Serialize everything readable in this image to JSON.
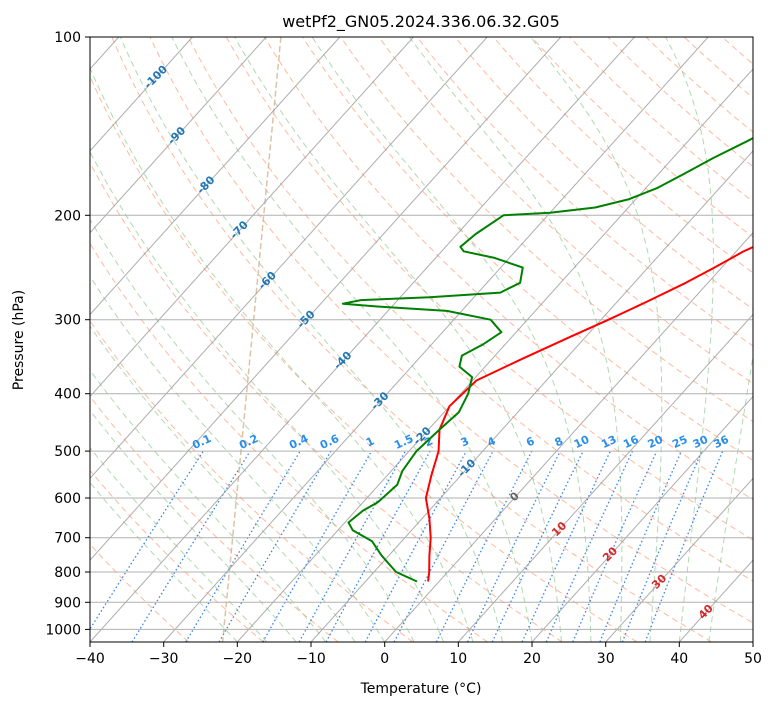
{
  "chart_data": {
    "type": "line",
    "title": "wetPf2_GN05.2024.336.06.32.G05",
    "xlabel": "Temperature (°C)",
    "ylabel": "Pressure (hPa)",
    "xlim": [
      -40,
      50
    ],
    "ylim": [
      1050,
      100
    ],
    "y_scale": "log",
    "grid": true,
    "x_ticks": [
      "−40",
      "−30",
      "−20",
      "−10",
      "0",
      "10",
      "20",
      "30",
      "40",
      "50"
    ],
    "x_tick_values": [
      -40,
      -30,
      -20,
      -10,
      0,
      10,
      20,
      30,
      40,
      50
    ],
    "y_ticks": [
      "100",
      "200",
      "300",
      "400",
      "500",
      "600",
      "700",
      "800",
      "900",
      "1000"
    ],
    "y_tick_values": [
      100,
      200,
      300,
      400,
      500,
      600,
      700,
      800,
      900,
      1000
    ],
    "colors": {
      "temperature": "#ff0000",
      "dewpoint": "#008000",
      "dry_adiabat": "#ff7f50",
      "moist_adiabat": "#90c890",
      "mixing_ratio": "#1f77e8",
      "isotherm": "#999999",
      "lcl_curve": "#d2b48c",
      "isotherm_label": "#1f77b4",
      "adiabat_label": "#d62728",
      "mixing_label": "#2a8fe8"
    },
    "series": [
      {
        "key": "temperature",
        "points": [
          [
            -1.5,
            830
          ],
          [
            -2.5,
            800
          ],
          [
            -4.5,
            750
          ],
          [
            -6.5,
            700
          ],
          [
            -9,
            650
          ],
          [
            -12,
            600
          ],
          [
            -14,
            550
          ],
          [
            -16,
            500
          ],
          [
            -18.5,
            460
          ],
          [
            -20,
            420
          ],
          [
            -19.5,
            380
          ],
          [
            -16,
            350
          ],
          [
            -12,
            320
          ],
          [
            -9,
            300
          ],
          [
            -6,
            280
          ],
          [
            -3,
            260
          ],
          [
            -1,
            245
          ],
          [
            1,
            230
          ],
          [
            3,
            220
          ],
          [
            5.5,
            205
          ],
          [
            7,
            195
          ],
          [
            8.5,
            180
          ],
          [
            10,
            165
          ],
          [
            11.5,
            150
          ],
          [
            13,
            140
          ],
          [
            15,
            130
          ],
          [
            16.5,
            122
          ],
          [
            17,
            115
          ],
          [
            18,
            108
          ],
          [
            20,
            100
          ]
        ]
      },
      {
        "key": "dewpoint",
        "points": [
          [
            -3,
            830
          ],
          [
            -7,
            800
          ],
          [
            -11,
            750
          ],
          [
            -14,
            710
          ],
          [
            -18,
            680
          ],
          [
            -19.5,
            660
          ],
          [
            -19,
            630
          ],
          [
            -18,
            610
          ],
          [
            -17.5,
            570
          ],
          [
            -18.5,
            540
          ],
          [
            -19,
            500
          ],
          [
            -18.5,
            460
          ],
          [
            -18,
            430
          ],
          [
            -19,
            400
          ],
          [
            -20.5,
            375
          ],
          [
            -23.5,
            360
          ],
          [
            -24.5,
            345
          ],
          [
            -23,
            330
          ],
          [
            -22,
            315
          ],
          [
            -25,
            300
          ],
          [
            -32,
            290
          ],
          [
            -42,
            285
          ],
          [
            -47,
            282
          ],
          [
            -45,
            278
          ],
          [
            -36,
            275
          ],
          [
            -27,
            270
          ],
          [
            -25.5,
            260
          ],
          [
            -27,
            245
          ],
          [
            -32,
            236
          ],
          [
            -37,
            230
          ],
          [
            -38,
            226
          ],
          [
            -37.5,
            215
          ],
          [
            -36,
            200
          ],
          [
            -30,
            198
          ],
          [
            -24.5,
            194
          ],
          [
            -21,
            188
          ],
          [
            -18.5,
            180
          ],
          [
            -16.5,
            170
          ],
          [
            -14.5,
            160
          ],
          [
            -12,
            150
          ],
          [
            -10,
            142
          ],
          [
            -7,
            133
          ],
          [
            -5,
            125
          ],
          [
            -3.5,
            118
          ],
          [
            -2,
            110
          ],
          [
            -0.5,
            100
          ]
        ]
      }
    ],
    "isotherm_labels": [
      {
        "text": "-100",
        "t": -100,
        "p": 117
      },
      {
        "text": "-90",
        "t": -90,
        "p": 147
      },
      {
        "text": "-80",
        "t": -80,
        "p": 178
      },
      {
        "text": "-70",
        "t": -70,
        "p": 212
      },
      {
        "text": "-60",
        "t": -60,
        "p": 258
      },
      {
        "text": "-50",
        "t": -50,
        "p": 300
      },
      {
        "text": "-40",
        "t": -40,
        "p": 352
      },
      {
        "text": "-30",
        "t": -30,
        "p": 412
      },
      {
        "text": "-20",
        "t": -20,
        "p": 472
      },
      {
        "text": "-10",
        "t": -10,
        "p": 535
      },
      {
        "text": "0",
        "t": 0,
        "p": 598
      },
      {
        "text": "10",
        "t": 10,
        "p": 678
      },
      {
        "text": "20",
        "t": 20,
        "p": 748
      },
      {
        "text": "30",
        "t": 30,
        "p": 832
      },
      {
        "text": "40",
        "t": 40,
        "p": 935
      }
    ],
    "mixing_ratio_labels": [
      "0.1",
      "0.2",
      "0.4",
      "0.6",
      "1",
      "1.5",
      "2",
      "3",
      "4",
      "6",
      "8",
      "10",
      "13",
      "16",
      "20",
      "25",
      "30",
      "36"
    ],
    "mixing_ratio_values": [
      0.1,
      0.2,
      0.4,
      0.6,
      1,
      1.5,
      2,
      3,
      4,
      6,
      8,
      10,
      13,
      16,
      20,
      25,
      30,
      36
    ]
  }
}
